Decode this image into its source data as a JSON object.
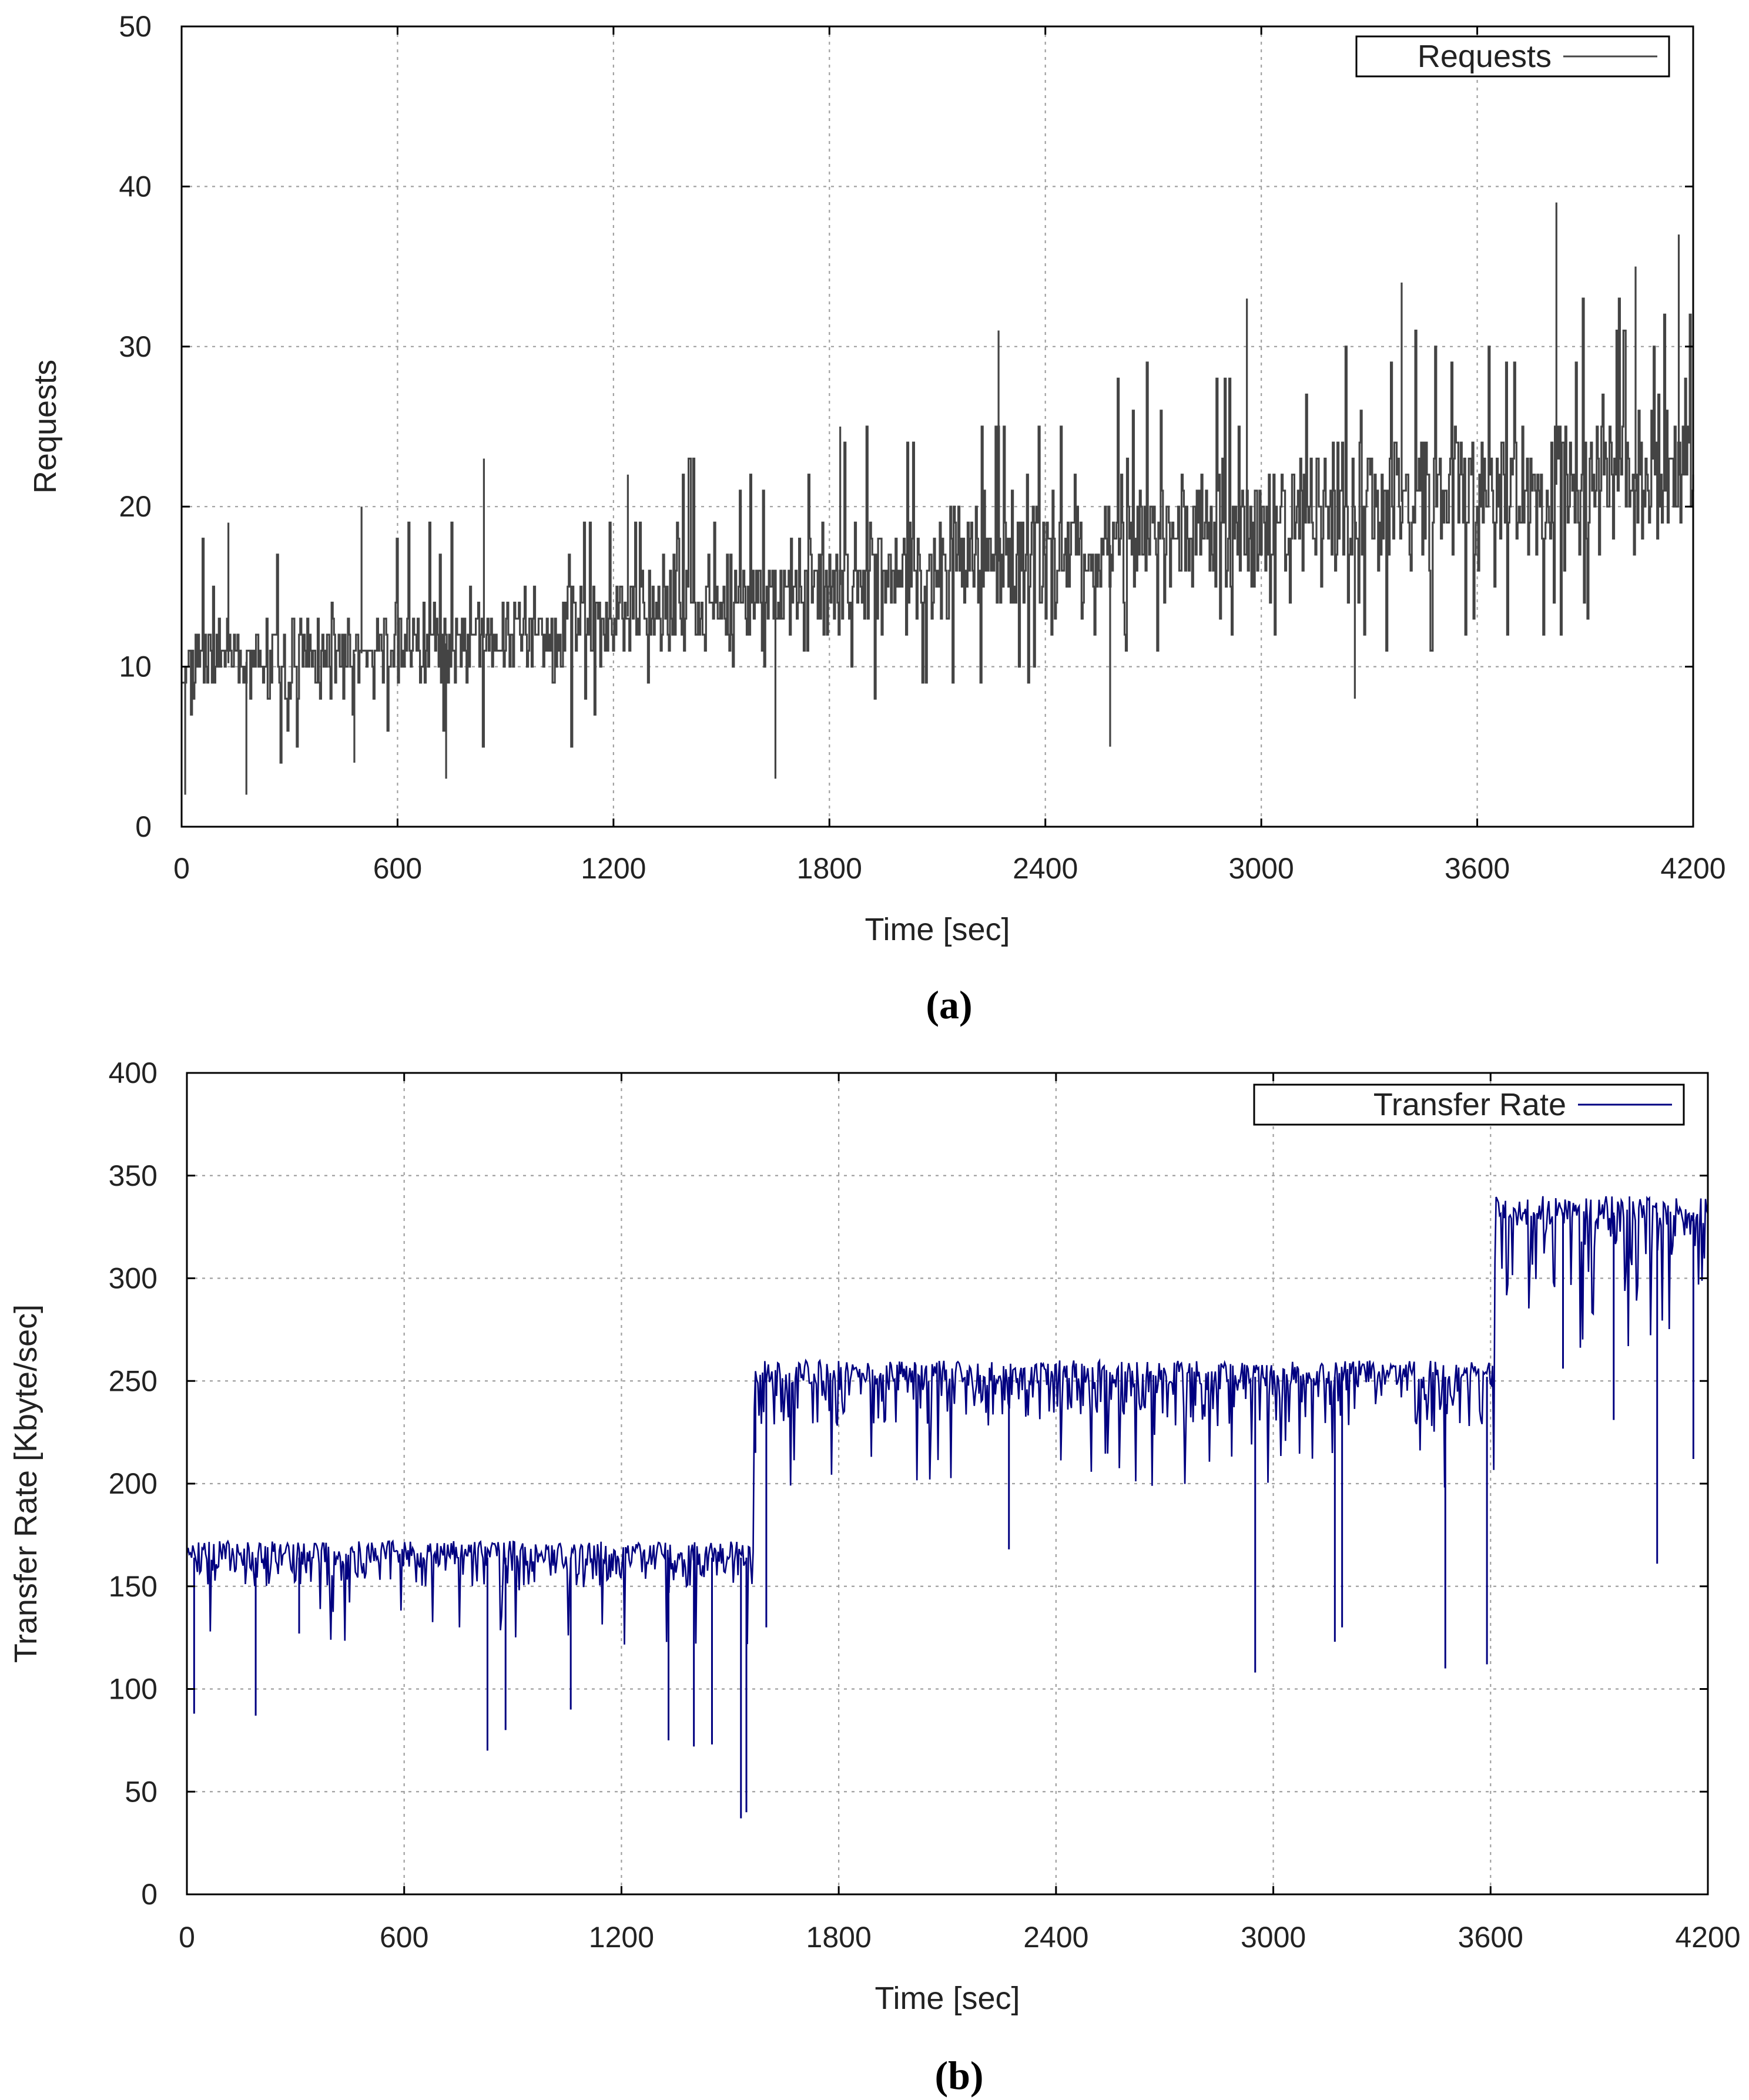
{
  "chart_data": [
    {
      "panel_id": "a",
      "type": "line",
      "caption": "(a)",
      "title": "",
      "xlabel": "Time [sec]",
      "ylabel": "Requests",
      "xlim": [
        0,
        4200
      ],
      "ylim": [
        0,
        50
      ],
      "xticks": [
        0,
        600,
        1200,
        1800,
        2400,
        3000,
        3600,
        4200
      ],
      "yticks": [
        0,
        10,
        20,
        30,
        40,
        50
      ],
      "grid": true,
      "legend_position": "top-right",
      "series": [
        {
          "name": "Requests",
          "color": "#444444",
          "description": "noisy 1-second samples trending upward",
          "mean_trend": {
            "x": [
              0,
              600,
              1200,
              1800,
              2400,
              3000,
              3600,
              4200
            ],
            "y": [
              10,
              11,
              13,
              15,
              17,
              19,
              21,
              22
            ]
          },
          "band_low": {
            "x": [
              0,
              600,
              1200,
              1800,
              2400,
              3000,
              3600,
              4200
            ],
            "y": [
              6,
              7,
              8,
              10,
              11,
              12,
              14,
              15
            ]
          },
          "band_high": {
            "x": [
              0,
              600,
              1200,
              1800,
              2400,
              3000,
              3600,
              4200
            ],
            "y": [
              14,
              15,
              18,
              21,
              24,
              26,
              28,
              30
            ]
          },
          "peaks": {
            "x": [
              130,
              500,
              840,
              1240,
              1830,
              2270,
              2960,
              3390,
              3820,
              4040,
              4160
            ],
            "y": [
              19,
              20,
              23,
              22,
              25,
              31,
              33,
              34,
              39,
              35,
              37
            ]
          },
          "troughs": {
            "x": [
              10,
              180,
              480,
              735,
              1650,
              2580,
              3260
            ],
            "y": [
              2,
              2,
              4,
              3,
              3,
              5,
              8
            ]
          }
        }
      ]
    },
    {
      "panel_id": "b",
      "type": "line",
      "caption": "(b)",
      "title": "",
      "xlabel": "Time [sec]",
      "ylabel": "Transfer Rate [Kbyte/sec]",
      "xlim": [
        0,
        4200
      ],
      "ylim": [
        0,
        400
      ],
      "xticks": [
        0,
        600,
        1200,
        1800,
        2400,
        3000,
        3600,
        4200
      ],
      "yticks": [
        0,
        50,
        100,
        150,
        200,
        250,
        300,
        350,
        400
      ],
      "grid": true,
      "legend_position": "top-right",
      "series": [
        {
          "name": "Transfer Rate",
          "color": "#000080",
          "description": "step function with three levels and downward spikes",
          "levels": [
            {
              "x_start": 0,
              "x_end": 1565,
              "top": 172,
              "band_low": 150
            },
            {
              "x_start": 1565,
              "x_end": 3610,
              "top": 260,
              "band_low": 228
            },
            {
              "x_start": 3610,
              "x_end": 4200,
              "top": 340,
              "band_low": 295
            }
          ],
          "dips": {
            "x": [
              20,
              190,
              310,
              830,
              880,
              1060,
              1330,
              1400,
              1450,
              1530,
              1545,
              1570,
              1600,
              2270,
              2950,
              3170,
              3190,
              3475,
              3590,
              3800,
              3940,
              4060,
              4160
            ],
            "y": [
              88,
              87,
              127,
              70,
              80,
              90,
              75,
              72,
              73,
              37,
              40,
              215,
              130,
              168,
              108,
              123,
              130,
              110,
              112,
              256,
              231,
              161,
              212
            ]
          }
        }
      ]
    }
  ]
}
